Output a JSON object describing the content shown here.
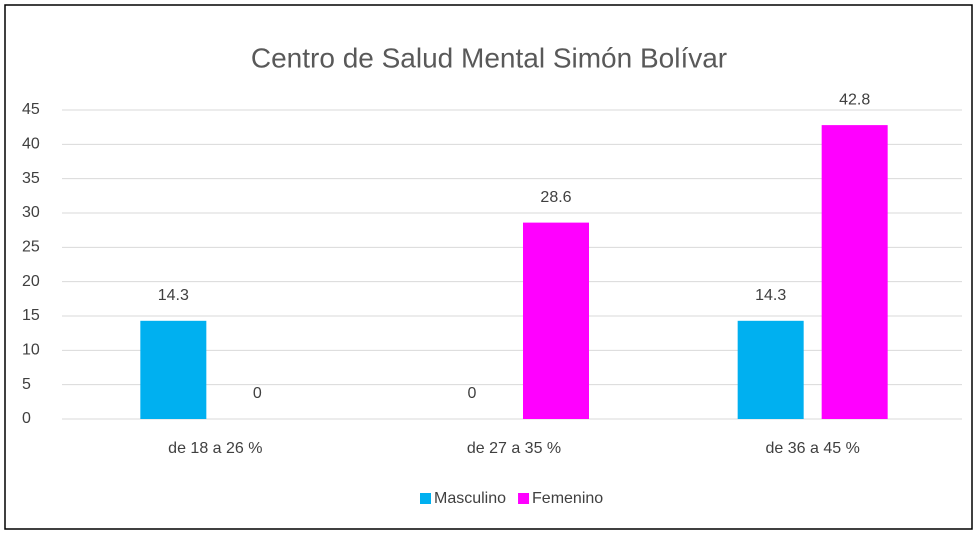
{
  "chart_data": {
    "type": "bar",
    "title": "Centro de Salud Mental Simón Bolívar",
    "categories": [
      "de 18 a 26 %",
      "de 27 a 35 %",
      "de 36 a 45 %"
    ],
    "series": [
      {
        "name": "Masculino",
        "color": "#00b0f0",
        "values": [
          14.3,
          0,
          14.3
        ]
      },
      {
        "name": "Femenino",
        "color": "#ff00ff",
        "values": [
          0,
          28.6,
          42.8
        ]
      }
    ],
    "ylim": [
      0,
      45
    ],
    "yticks": [
      0,
      5,
      10,
      15,
      20,
      25,
      30,
      35,
      40,
      45
    ],
    "grid": true,
    "legend": "bottom"
  }
}
